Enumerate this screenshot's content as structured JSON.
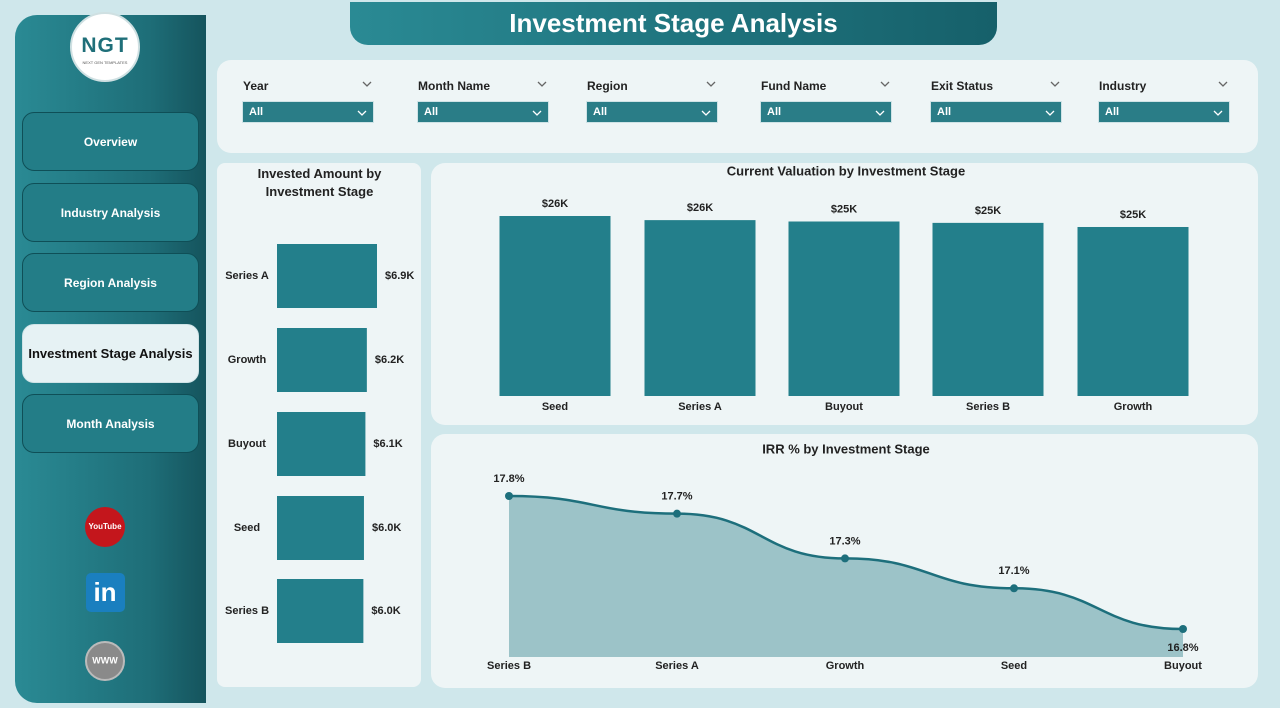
{
  "header": {
    "logo": "NGT",
    "logo_subtitle": "NEXT GEN TEMPLATES",
    "title": "Investment Stage Analysis"
  },
  "nav": [
    "Overview",
    "Industry Analysis",
    "Region Analysis",
    "Investment Stage Analysis",
    "Month Analysis"
  ],
  "active_nav": 3,
  "social": {
    "youtube": "YouTube",
    "linkedin": "in",
    "web": "WWW"
  },
  "filters": [
    {
      "label": "Year",
      "value": "All"
    },
    {
      "label": "Month Name",
      "value": "All"
    },
    {
      "label": "Region",
      "value": "All"
    },
    {
      "label": "Fund Name",
      "value": "All"
    },
    {
      "label": "Exit Status",
      "value": "All"
    },
    {
      "label": "Industry",
      "value": "All"
    }
  ],
  "chart_data": [
    {
      "type": "hbar",
      "title": "Invested Amount by Investment Stage",
      "categories": [
        "Series A",
        "Growth",
        "Buyout",
        "Seed",
        "Series B"
      ],
      "values": [
        6900,
        6200,
        6100,
        6000,
        5960
      ],
      "value_labels": [
        "$6.9K",
        "$6.2K",
        "$6.1K",
        "$6.0K",
        "$6.0K"
      ],
      "color": "#237f8b"
    },
    {
      "type": "bar",
      "title": "Current Valuation by Investment Stage",
      "categories": [
        "Seed",
        "Series A",
        "Buyout",
        "Series B",
        "Growth"
      ],
      "values": [
        26200,
        25600,
        25400,
        25200,
        24600
      ],
      "value_labels": [
        "$26K",
        "$26K",
        "$25K",
        "$25K",
        "$25K"
      ],
      "color": "#237f8b"
    },
    {
      "type": "area",
      "title": "IRR % by Investment Stage",
      "categories": [
        "Series B",
        "Series A",
        "Growth",
        "Seed",
        "Buyout"
      ],
      "values": [
        17.78,
        17.65,
        17.32,
        17.1,
        16.8
      ],
      "value_labels": [
        "17.8%",
        "17.7%",
        "17.3%",
        "17.1%",
        "16.8%"
      ],
      "color": "#1d6f7c",
      "fill": "#9cc3c8"
    }
  ]
}
